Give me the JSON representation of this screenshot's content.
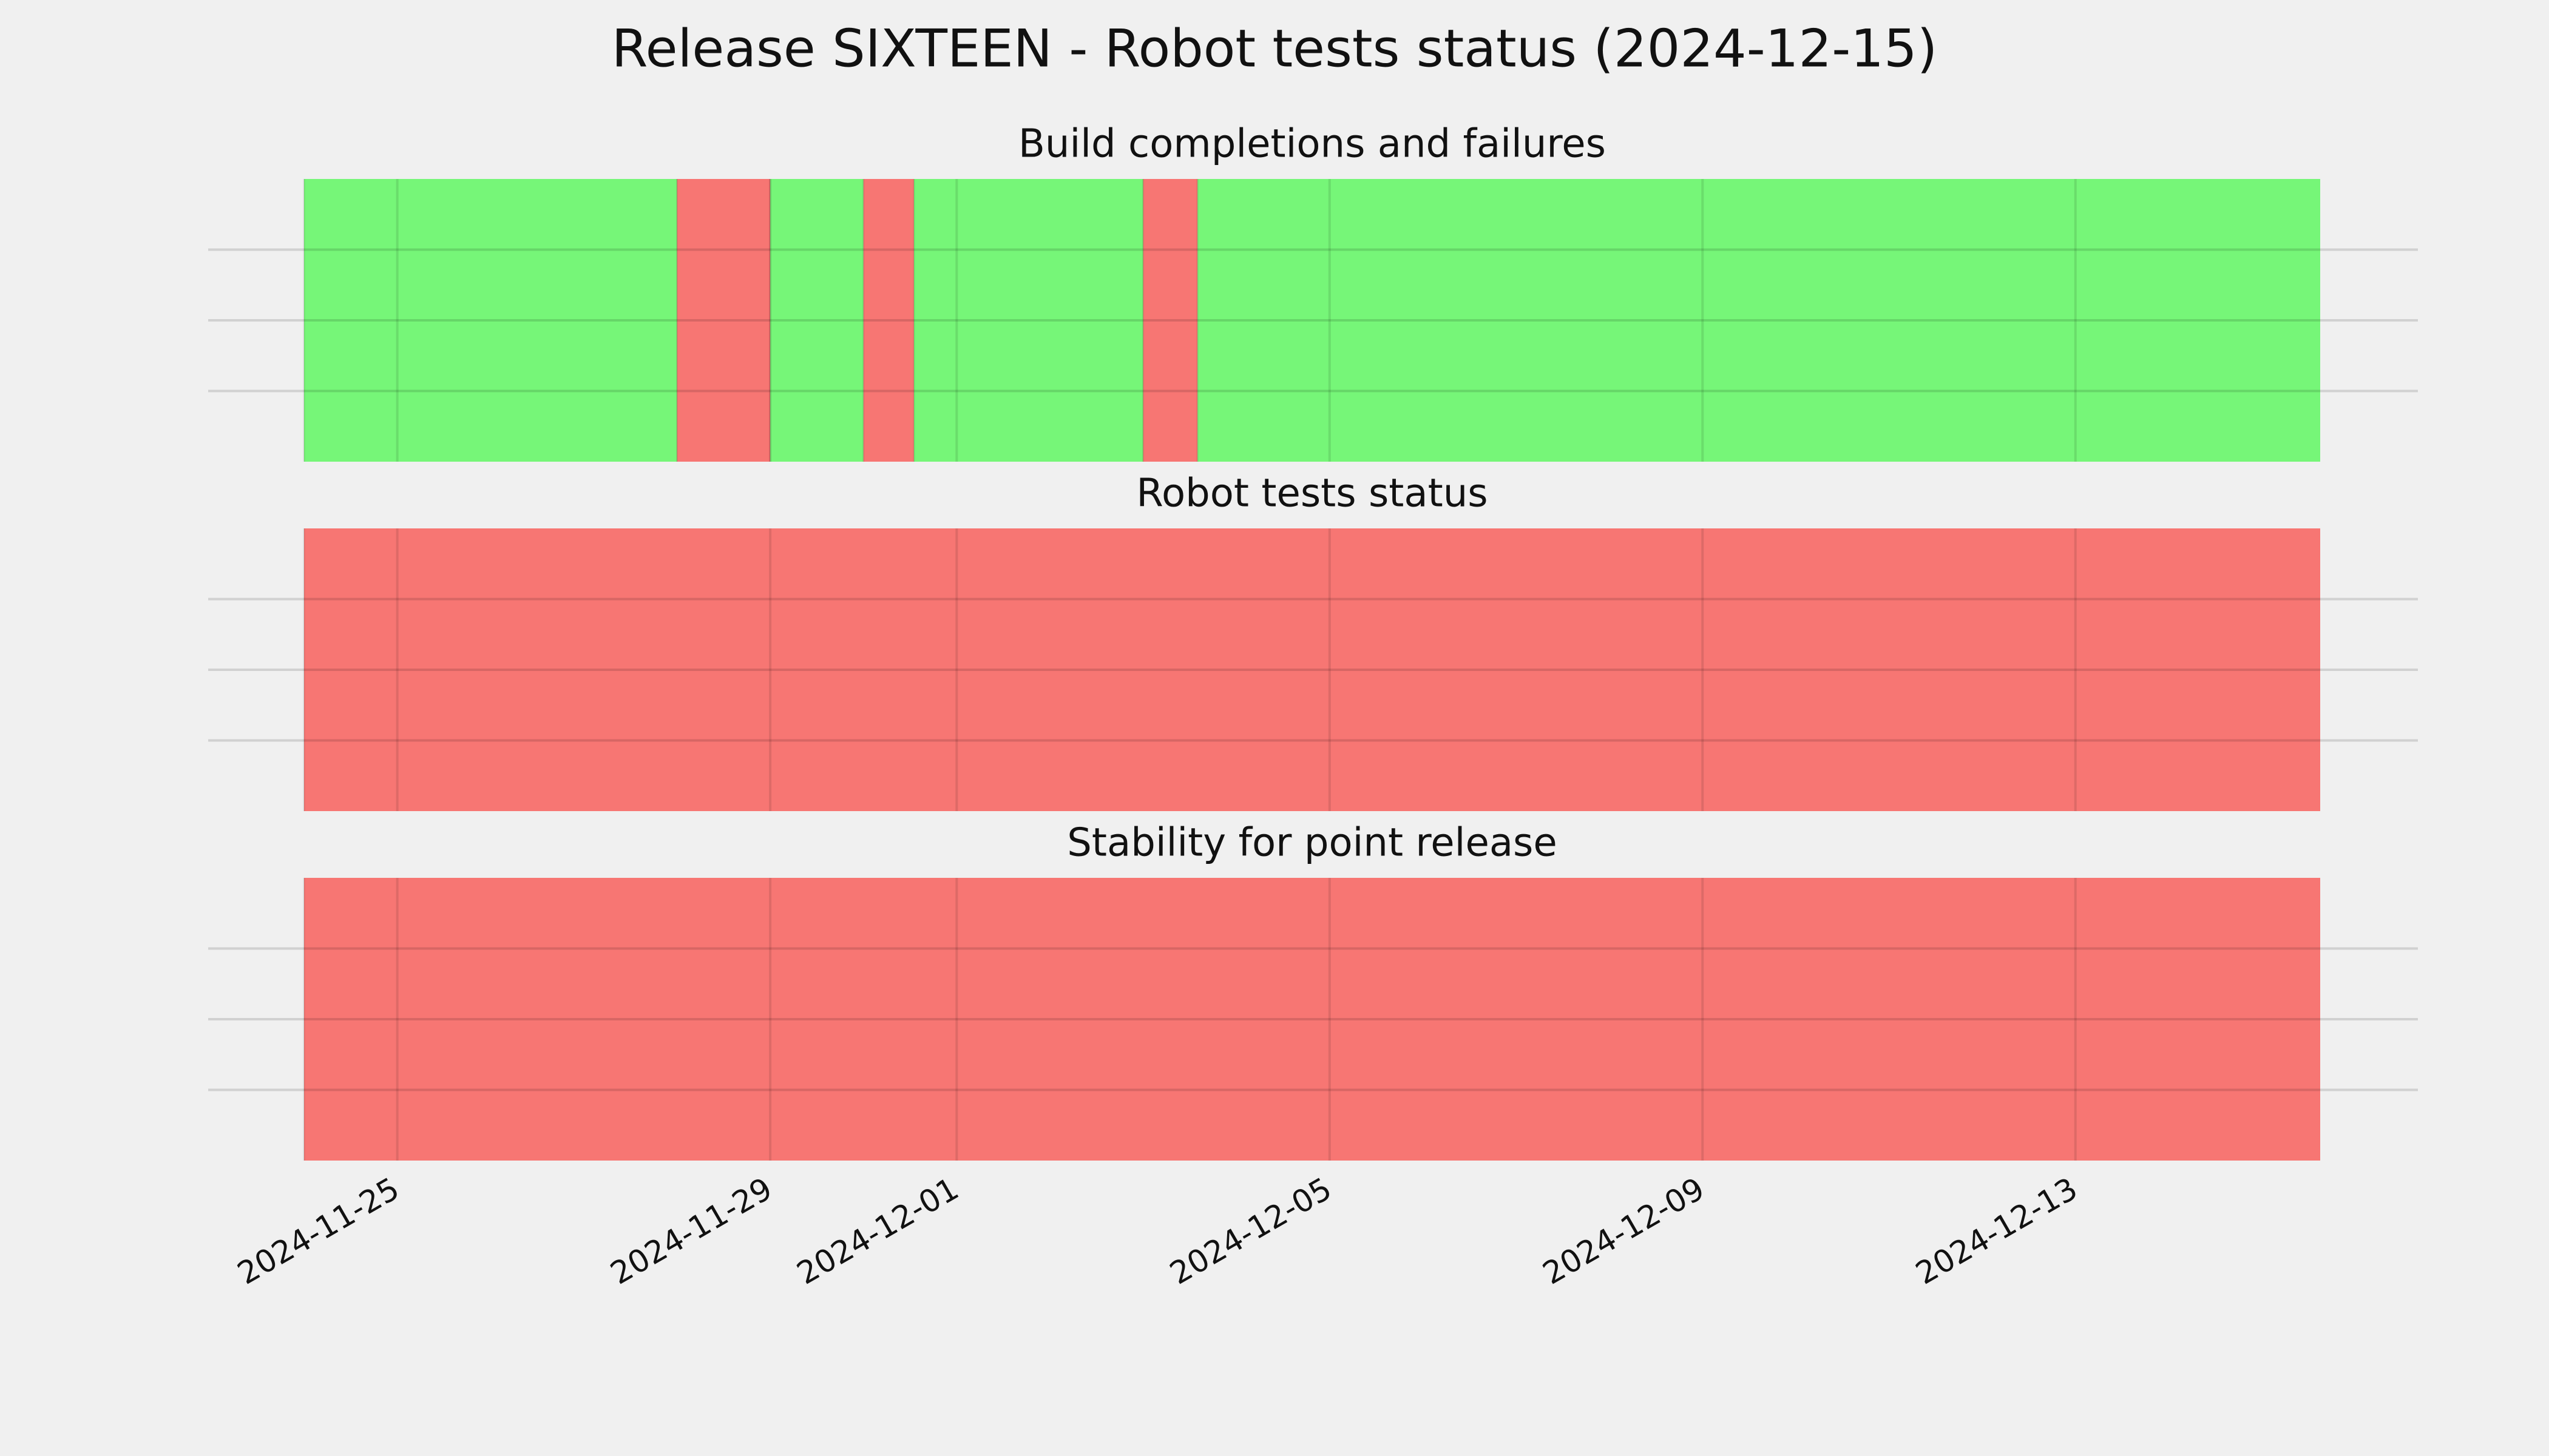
{
  "title": "Release SIXTEEN - Robot tests status (2024-12-15)",
  "chart_data": [
    {
      "type": "timeline",
      "title": "Build completions and failures",
      "segments": [
        {
          "start": "2024-11-24",
          "end": "2024-11-28",
          "color": "#76f678"
        },
        {
          "start": "2024-11-28",
          "end": "2024-11-29",
          "color": "#f77673"
        },
        {
          "start": "2024-11-29",
          "end": "2024-11-30",
          "color": "#76f678"
        },
        {
          "start": "2024-11-30",
          "end": "2024-11-30T13:00",
          "color": "#f77673"
        },
        {
          "start": "2024-11-30T13:00",
          "end": "2024-12-03",
          "color": "#76f678"
        },
        {
          "start": "2024-12-03",
          "end": "2024-12-03T14:00",
          "color": "#f77673"
        },
        {
          "start": "2024-12-03T14:00",
          "end": "2024-12-15T15:00",
          "color": "#76f678"
        }
      ]
    },
    {
      "type": "timeline",
      "title": "Robot tests status",
      "segments": [
        {
          "start": "2024-11-24",
          "end": "2024-12-15T15:00",
          "color": "#f77673"
        }
      ]
    },
    {
      "type": "timeline",
      "title": "Stability for point release",
      "segments": [
        {
          "start": "2024-11-24",
          "end": "2024-12-15T15:00",
          "color": "#f77673"
        }
      ],
      "xlim": [
        "2024-11-24",
        "2024-12-15T15:00"
      ],
      "xticks": [
        "2024-11-25",
        "2024-11-29",
        "2024-12-01",
        "2024-12-05",
        "2024-12-09",
        "2024-12-13"
      ]
    }
  ]
}
